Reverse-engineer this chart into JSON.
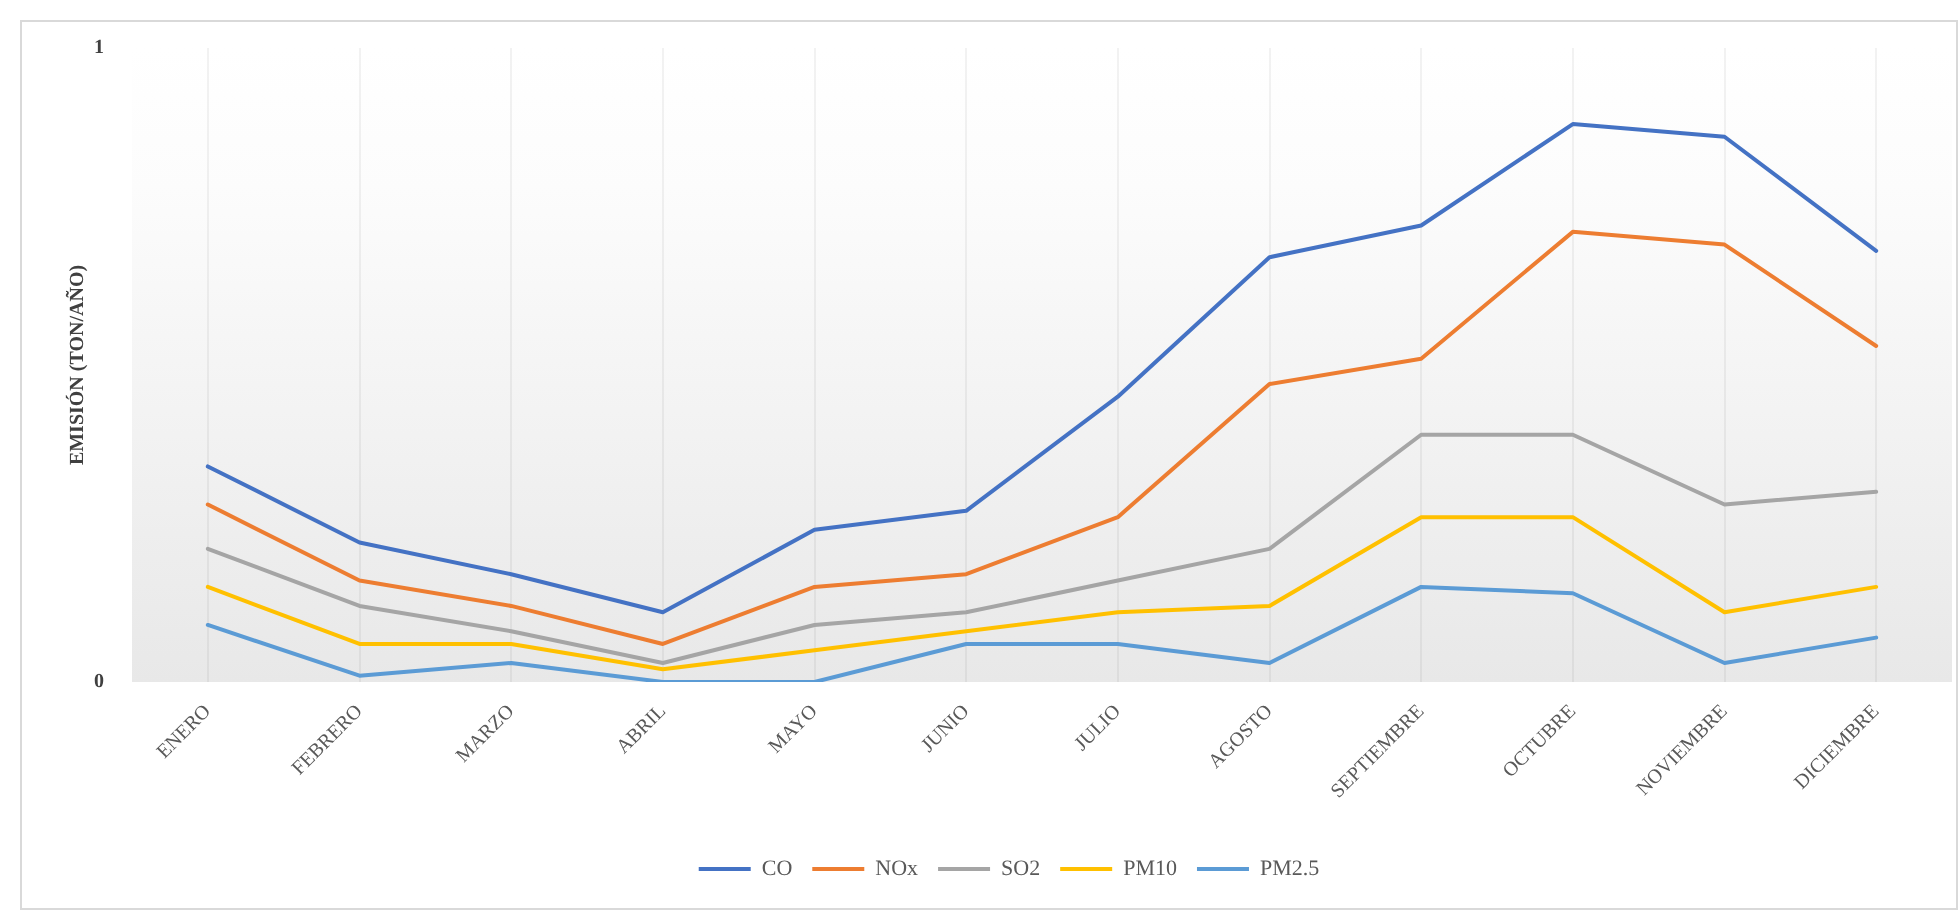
{
  "chart_data": {
    "type": "line",
    "ylabel": "EMISIÓN (TON/AÑO)",
    "categories": [
      "ENERO",
      "FEBRERO",
      "MARZO",
      "ABRIL",
      "MAYO",
      "JUNIO",
      "JULIO",
      "AGOSTO",
      "SEPTIEMBRE",
      "OCTUBRE",
      "NOVIEMBRE",
      "DICIEMBRE"
    ],
    "series": [
      {
        "name": "CO",
        "color": "#4472c4",
        "values": [
          0.34,
          0.22,
          0.17,
          0.11,
          0.24,
          0.27,
          0.45,
          0.67,
          0.72,
          0.88,
          0.86,
          0.68
        ]
      },
      {
        "name": "NOx",
        "color": "#ed7d31",
        "values": [
          0.28,
          0.16,
          0.12,
          0.06,
          0.15,
          0.17,
          0.26,
          0.47,
          0.51,
          0.71,
          0.69,
          0.53
        ]
      },
      {
        "name": "SO2",
        "color": "#a5a5a5",
        "values": [
          0.21,
          0.12,
          0.08,
          0.03,
          0.09,
          0.11,
          0.16,
          0.21,
          0.39,
          0.39,
          0.28,
          0.3
        ]
      },
      {
        "name": "PM10",
        "color": "#ffc000",
        "values": [
          0.15,
          0.06,
          0.06,
          0.02,
          0.05,
          0.08,
          0.11,
          0.12,
          0.26,
          0.26,
          0.11,
          0.15
        ]
      },
      {
        "name": "PM2.5",
        "color": "#5b9bd5",
        "values": [
          0.09,
          0.01,
          0.03,
          0.0,
          0.0,
          0.06,
          0.06,
          0.03,
          0.15,
          0.14,
          0.03,
          0.07
        ]
      }
    ],
    "ylim": [
      0,
      1
    ],
    "yticks": [
      0,
      1
    ],
    "grid": "x",
    "legend": "bottom",
    "marker": "none"
  }
}
